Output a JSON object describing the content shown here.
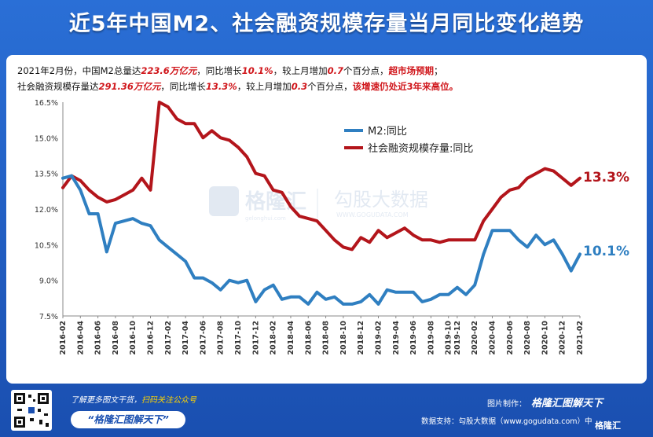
{
  "title": "近5年中国M2、社会融资规模存量当月同比变化趋势",
  "subtitle": {
    "line1": [
      {
        "t": "2021年2月份，中国M2总量达",
        "c": "n"
      },
      {
        "t": "223.6万亿元",
        "c": "hl"
      },
      {
        "t": "，同比增长",
        "c": "n"
      },
      {
        "t": "10.1%",
        "c": "hl"
      },
      {
        "t": "，较上月增加",
        "c": "n"
      },
      {
        "t": "0.7",
        "c": "hl"
      },
      {
        "t": "个百分点，",
        "c": "n"
      },
      {
        "t": "超市场预期",
        "c": "red"
      },
      {
        "t": "；",
        "c": "n"
      }
    ],
    "line2": [
      {
        "t": "社会融资规模存量达",
        "c": "n"
      },
      {
        "t": "291.36万亿元",
        "c": "hl"
      },
      {
        "t": "，同比增长",
        "c": "n"
      },
      {
        "t": "13.3%",
        "c": "hl"
      },
      {
        "t": "，较上月增加",
        "c": "n"
      },
      {
        "t": "0.3",
        "c": "hl"
      },
      {
        "t": "个百分点，",
        "c": "n"
      },
      {
        "t": "该增速仍处近3年来高位。",
        "c": "red"
      }
    ]
  },
  "watermark": {
    "brand": "格隆汇",
    "brand_sub": "gelonghui.com",
    "data": "勾股大数据",
    "data_url": "WWW.GOGUDATA.COM"
  },
  "end_labels": {
    "m2": "10.1%",
    "tsf": "13.3%"
  },
  "colors": {
    "m2": "#2f7fc1",
    "tsf": "#b3151b",
    "accent": "#d0161b",
    "background": "#1a4fb0"
  },
  "footer": {
    "learn_prefix": "了解更多图文干货，",
    "learn_highlight": "扫码关注公众号",
    "pill": "“格隆汇图解天下”",
    "produced_by": "图片制作：",
    "produced_brand": "格隆汇图解天下",
    "data_support": "数据支持：勾股大数据（www.gogudata.com）中",
    "corner_logo": "格隆汇"
  },
  "chart_data": {
    "type": "line",
    "title": "近5年中国M2、社会融资规模存量当月同比变化趋势",
    "xlabel": "",
    "ylabel": "",
    "ylim": [
      7.5,
      16.5
    ],
    "yticks": [
      "7.5%",
      "9.0%",
      "10.5%",
      "12.0%",
      "13.5%",
      "15.0%",
      "16.5%"
    ],
    "ytick_values": [
      7.5,
      9.0,
      10.5,
      12.0,
      13.5,
      15.0,
      16.5
    ],
    "grid": false,
    "legend": "top-center",
    "xtick_labels": [
      "2016-02",
      "2016-04",
      "2016-06",
      "2016-08",
      "2016-10",
      "2016-12",
      "2017-02",
      "2017-04",
      "2017-06",
      "2017-08",
      "2017-10",
      "2017-12",
      "2018-02",
      "2018-04",
      "2018-06",
      "2018-08",
      "2018-10",
      "2018-12",
      "2019-02",
      "2019-04",
      "2019-06",
      "2019-08",
      "2019-10",
      "2019-12",
      "2020-02",
      "2020-04",
      "2020-06",
      "2020-08",
      "2020-10",
      "2020-12",
      "2021-02"
    ],
    "x": [
      "2016-02",
      "2016-03",
      "2016-04",
      "2016-05",
      "2016-06",
      "2016-07",
      "2016-08",
      "2016-09",
      "2016-10",
      "2016-11",
      "2016-12",
      "2017-01",
      "2017-02",
      "2017-03",
      "2017-04",
      "2017-05",
      "2017-06",
      "2017-07",
      "2017-08",
      "2017-09",
      "2017-10",
      "2017-11",
      "2017-12",
      "2018-01",
      "2018-02",
      "2018-03",
      "2018-04",
      "2018-05",
      "2018-06",
      "2018-07",
      "2018-08",
      "2018-09",
      "2018-10",
      "2018-11",
      "2018-12",
      "2019-01",
      "2019-02",
      "2019-03",
      "2019-04",
      "2019-05",
      "2019-06",
      "2019-07",
      "2019-08",
      "2019-09",
      "2019-10",
      "2019-12",
      "2020-01",
      "2020-02",
      "2020-03",
      "2020-04",
      "2020-05",
      "2020-06",
      "2020-07",
      "2020-08",
      "2020-09",
      "2020-10",
      "2020-11",
      "2020-12",
      "2021-01",
      "2021-02"
    ],
    "series": [
      {
        "name": "M2:同比",
        "color": "#2f7fc1",
        "values": [
          13.3,
          13.4,
          12.8,
          11.8,
          11.8,
          10.2,
          11.4,
          11.5,
          11.6,
          11.4,
          11.3,
          10.7,
          10.4,
          10.1,
          9.8,
          9.1,
          9.1,
          8.9,
          8.6,
          9.0,
          8.9,
          9.0,
          8.1,
          8.6,
          8.8,
          8.2,
          8.3,
          8.3,
          8.0,
          8.5,
          8.2,
          8.3,
          8.0,
          8.0,
          8.1,
          8.4,
          8.0,
          8.6,
          8.5,
          8.5,
          8.5,
          8.1,
          8.2,
          8.4,
          8.4,
          8.7,
          8.4,
          8.8,
          10.1,
          11.1,
          11.1,
          11.1,
          10.7,
          10.4,
          10.9,
          10.5,
          10.7,
          10.1,
          9.4,
          10.1
        ]
      },
      {
        "name": "社会融资规模存量:同比",
        "color": "#b3151b",
        "values": [
          12.9,
          13.4,
          13.2,
          12.8,
          12.5,
          12.3,
          12.4,
          12.6,
          12.8,
          13.3,
          12.8,
          16.5,
          16.3,
          15.8,
          15.6,
          15.6,
          15.0,
          15.3,
          15.0,
          14.9,
          14.6,
          14.2,
          13.5,
          13.4,
          12.8,
          12.7,
          12.1,
          11.7,
          11.6,
          11.5,
          11.1,
          10.7,
          10.4,
          10.3,
          10.8,
          10.6,
          11.1,
          10.8,
          11.0,
          11.2,
          10.9,
          10.7,
          10.7,
          10.6,
          10.7,
          10.7,
          10.7,
          10.7,
          11.5,
          12.0,
          12.5,
          12.8,
          12.9,
          13.3,
          13.5,
          13.7,
          13.6,
          13.3,
          13.0,
          13.3
        ]
      }
    ]
  }
}
